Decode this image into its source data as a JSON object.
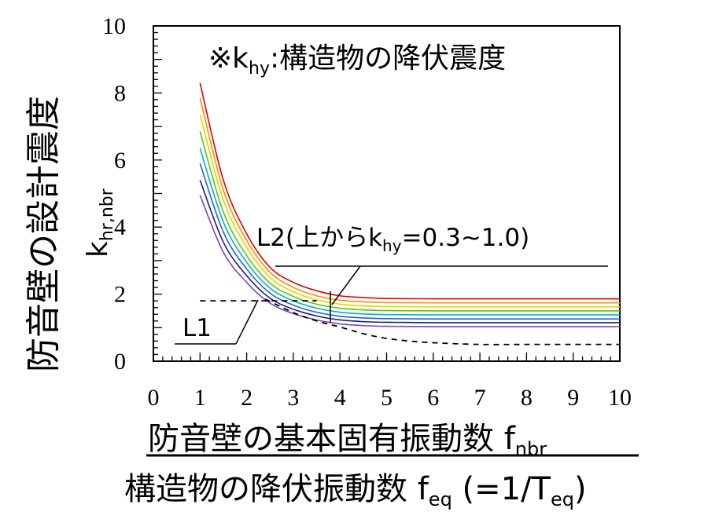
{
  "chart_data": {
    "type": "line",
    "xlim": [
      0,
      10
    ],
    "ylim": [
      0,
      10
    ],
    "x_ticks": [
      "0",
      "1",
      "2",
      "3",
      "4",
      "5",
      "6",
      "7",
      "8",
      "9",
      "10"
    ],
    "y_ticks": [
      "0",
      "2",
      "4",
      "6",
      "8",
      "10"
    ],
    "ylabel_outer": "防音壁の設計震度",
    "ylabel_inner": {
      "main": "k",
      "sub": "hr,nbr"
    },
    "xlabel": {
      "numerator": {
        "text": "防音壁の基本固有振動数 f",
        "sub": "nbr"
      },
      "denominator": {
        "text": "構造物の降伏振動数 f",
        "sub": "eq",
        "tail": " (=1/T",
        "tail_sub": "eq",
        "end": ")"
      }
    },
    "note": {
      "prefix": "※k",
      "sub": "hy",
      "suffix": ":構造物の降伏震度"
    },
    "annotations": {
      "L1": "L1",
      "L2": {
        "prefix": "L2(上からk",
        "sub": "hy",
        "suffix": "=0.3~1.0)"
      }
    },
    "L1": {
      "x": [
        1.0,
        1.5,
        2.0,
        2.5,
        3.0,
        3.5,
        4.0,
        4.5,
        5.0,
        5.5,
        6.0,
        7.0,
        8.0,
        9.0,
        10.0
      ],
      "y": [
        1.8,
        1.8,
        1.8,
        1.8,
        1.8,
        1.8,
        1.02,
        0.82,
        0.68,
        0.6,
        0.55,
        0.5,
        0.5,
        0.5,
        0.5
      ],
      "style": "dashed"
    },
    "series": [
      {
        "color": "#e00000",
        "x": [
          1,
          1.5,
          2,
          2.5,
          3,
          3.5,
          4,
          4.5,
          5,
          6,
          7,
          8,
          9,
          10
        ],
        "y": [
          8.3,
          5.4,
          3.8,
          2.8,
          2.35,
          2.1,
          1.95,
          1.9,
          1.87,
          1.86,
          1.86,
          1.86,
          1.86,
          1.86
        ]
      },
      {
        "color": "#ff8c00",
        "x": [
          1,
          1.5,
          2,
          2.5,
          3,
          3.5,
          4,
          4.5,
          5,
          6,
          7,
          8,
          9,
          10
        ],
        "y": [
          7.85,
          5.1,
          3.6,
          2.65,
          2.2,
          1.95,
          1.82,
          1.77,
          1.75,
          1.74,
          1.74,
          1.74,
          1.74,
          1.74
        ]
      },
      {
        "color": "#e8d000",
        "x": [
          1,
          1.5,
          2,
          2.5,
          3,
          3.5,
          4,
          4.5,
          5,
          6,
          7,
          8,
          9,
          10
        ],
        "y": [
          7.35,
          4.8,
          3.4,
          2.5,
          2.07,
          1.83,
          1.7,
          1.65,
          1.63,
          1.62,
          1.62,
          1.62,
          1.62,
          1.62
        ]
      },
      {
        "color": "#5ac800",
        "x": [
          1,
          1.5,
          2,
          2.5,
          3,
          3.5,
          4,
          4.5,
          5,
          6,
          7,
          8,
          9,
          10
        ],
        "y": [
          6.85,
          4.45,
          3.15,
          2.33,
          1.93,
          1.7,
          1.58,
          1.53,
          1.51,
          1.5,
          1.5,
          1.5,
          1.5,
          1.5
        ]
      },
      {
        "color": "#00b0c8",
        "x": [
          1,
          1.5,
          2,
          2.5,
          3,
          3.5,
          4,
          4.5,
          5,
          6,
          7,
          8,
          9,
          10
        ],
        "y": [
          6.35,
          4.15,
          2.95,
          2.18,
          1.8,
          1.58,
          1.46,
          1.41,
          1.39,
          1.38,
          1.38,
          1.38,
          1.38,
          1.38
        ]
      },
      {
        "color": "#2060e0",
        "x": [
          1,
          1.5,
          2,
          2.5,
          3,
          3.5,
          4,
          4.5,
          5,
          6,
          7,
          8,
          9,
          10
        ],
        "y": [
          5.9,
          3.85,
          2.75,
          2.03,
          1.67,
          1.46,
          1.34,
          1.29,
          1.27,
          1.26,
          1.26,
          1.26,
          1.26,
          1.26
        ]
      },
      {
        "color": "#102080",
        "x": [
          1,
          1.5,
          2,
          2.5,
          3,
          3.5,
          4,
          4.5,
          5,
          6,
          7,
          8,
          9,
          10
        ],
        "y": [
          5.4,
          3.55,
          2.55,
          1.88,
          1.55,
          1.35,
          1.23,
          1.18,
          1.16,
          1.15,
          1.15,
          1.15,
          1.15,
          1.15
        ]
      },
      {
        "color": "#8040c0",
        "x": [
          1,
          1.5,
          2,
          2.5,
          3,
          3.5,
          4,
          4.5,
          5,
          6,
          7,
          8,
          9,
          10
        ],
        "y": [
          4.95,
          3.25,
          2.35,
          1.73,
          1.42,
          1.23,
          1.11,
          1.06,
          1.04,
          1.03,
          1.03,
          1.03,
          1.03,
          1.03
        ]
      }
    ]
  }
}
